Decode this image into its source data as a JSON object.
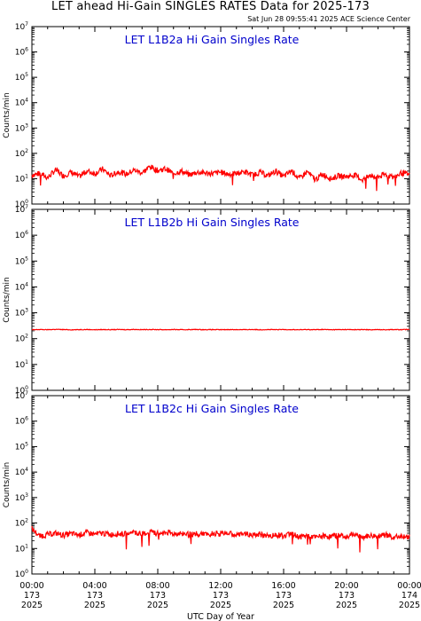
{
  "title": "LET ahead Hi-Gain SINGLES RATES Data for 2025-173",
  "timestamp": "Sat Jun 28 09:55:41 2025 ACE Science Center",
  "xlabel": "UTC Day of Year",
  "x_ticks": [
    {
      "time": "00:00",
      "day": "173",
      "year": "2025"
    },
    {
      "time": "04:00",
      "day": "173",
      "year": "2025"
    },
    {
      "time": "08:00",
      "day": "173",
      "year": "2025"
    },
    {
      "time": "12:00",
      "day": "173",
      "year": "2025"
    },
    {
      "time": "16:00",
      "day": "173",
      "year": "2025"
    },
    {
      "time": "20:00",
      "day": "173",
      "year": "2025"
    },
    {
      "time": "00:00",
      "day": "174",
      "year": "2025"
    }
  ],
  "colors": {
    "trace": "#ff0000",
    "panel_title": "#0000cc",
    "axes": "#000000"
  },
  "chart_data": [
    {
      "type": "line",
      "title": "LET L1B2a Hi Gain Singles Rate",
      "ylabel": "Counts/min",
      "yscale": "log",
      "ylim": [
        1,
        10000000
      ],
      "xlim_hours": [
        0,
        24
      ],
      "series": [
        {
          "color": "#ff0000",
          "x": [
            0,
            0.5,
            1,
            1.5,
            2,
            2.5,
            3,
            3.5,
            4,
            4.5,
            5,
            5.5,
            6,
            6.5,
            7,
            7.5,
            8,
            8.5,
            9,
            9.5,
            10,
            10.5,
            11,
            11.5,
            12,
            12.5,
            13,
            13.5,
            14,
            14.5,
            15,
            15.5,
            16,
            16.5,
            17,
            17.5,
            18,
            18.5,
            19,
            19.5,
            20,
            20.5,
            21,
            21.5,
            22,
            22.5,
            23,
            23.5,
            24
          ],
          "y": [
            14,
            16,
            11,
            22,
            13,
            18,
            12,
            20,
            16,
            24,
            13,
            19,
            15,
            22,
            17,
            30,
            21,
            25,
            16,
            20,
            14,
            18,
            17,
            16,
            18,
            15,
            16,
            19,
            14,
            18,
            13,
            20,
            12,
            21,
            10,
            19,
            9,
            15,
            10,
            13,
            12,
            14,
            9,
            13,
            12,
            15,
            11,
            17,
            14
          ]
        }
      ]
    },
    {
      "type": "line",
      "title": "LET L1B2b Hi Gain Singles Rate",
      "ylabel": "Counts/min",
      "yscale": "log",
      "ylim": [
        1,
        10000000
      ],
      "xlim_hours": [
        0,
        24
      ],
      "series": [
        {
          "color": "#ff0000",
          "x": [
            0,
            0.5,
            1,
            1.5,
            2,
            2.5,
            3,
            3.5,
            4,
            4.5,
            5,
            5.5,
            6,
            6.5,
            7,
            7.5,
            8,
            8.5,
            9,
            9.5,
            10,
            10.5,
            11,
            11.5,
            12,
            12.5,
            13,
            13.5,
            14,
            14.5,
            15,
            15.5,
            16,
            16.5,
            17,
            17.5,
            18,
            18.5,
            19,
            19.5,
            20,
            20.5,
            21,
            21.5,
            22,
            22.5,
            23,
            23.5,
            24
          ],
          "y": [
            220,
            225,
            222,
            228,
            224,
            220,
            223,
            226,
            221,
            224,
            222,
            225,
            223,
            227,
            222,
            226,
            224,
            222,
            225,
            221,
            223,
            226,
            222,
            224,
            221,
            225,
            223,
            222,
            226,
            221,
            224,
            222,
            225,
            223,
            221,
            224,
            222,
            226,
            221,
            223,
            225,
            222,
            224,
            221,
            223,
            222,
            225,
            221,
            230
          ]
        }
      ]
    },
    {
      "type": "line",
      "title": "LET L1B2c Hi Gain Singles Rate",
      "ylabel": "Counts/min",
      "yscale": "log",
      "ylim": [
        1,
        10000000
      ],
      "xlim_hours": [
        0,
        24
      ],
      "series": [
        {
          "color": "#ff0000",
          "x": [
            0,
            0.5,
            1,
            1.5,
            2,
            2.5,
            3,
            3.5,
            4,
            4.5,
            5,
            5.5,
            6,
            6.5,
            7,
            7.5,
            8,
            8.5,
            9,
            9.5,
            10,
            10.5,
            11,
            11.5,
            12,
            12.5,
            13,
            13.5,
            14,
            14.5,
            15,
            15.5,
            16,
            16.5,
            17,
            17.5,
            18,
            18.5,
            19,
            19.5,
            20,
            20.5,
            21,
            21.5,
            22,
            22.5,
            23,
            23.5,
            24
          ],
          "y": [
            60,
            30,
            35,
            40,
            33,
            38,
            34,
            42,
            36,
            40,
            35,
            38,
            37,
            41,
            36,
            45,
            39,
            43,
            38,
            40,
            36,
            39,
            35,
            38,
            37,
            40,
            34,
            38,
            32,
            36,
            30,
            35,
            31,
            37,
            28,
            33,
            27,
            31,
            29,
            34,
            30,
            36,
            28,
            32,
            30,
            34,
            27,
            31,
            30
          ]
        }
      ]
    }
  ]
}
